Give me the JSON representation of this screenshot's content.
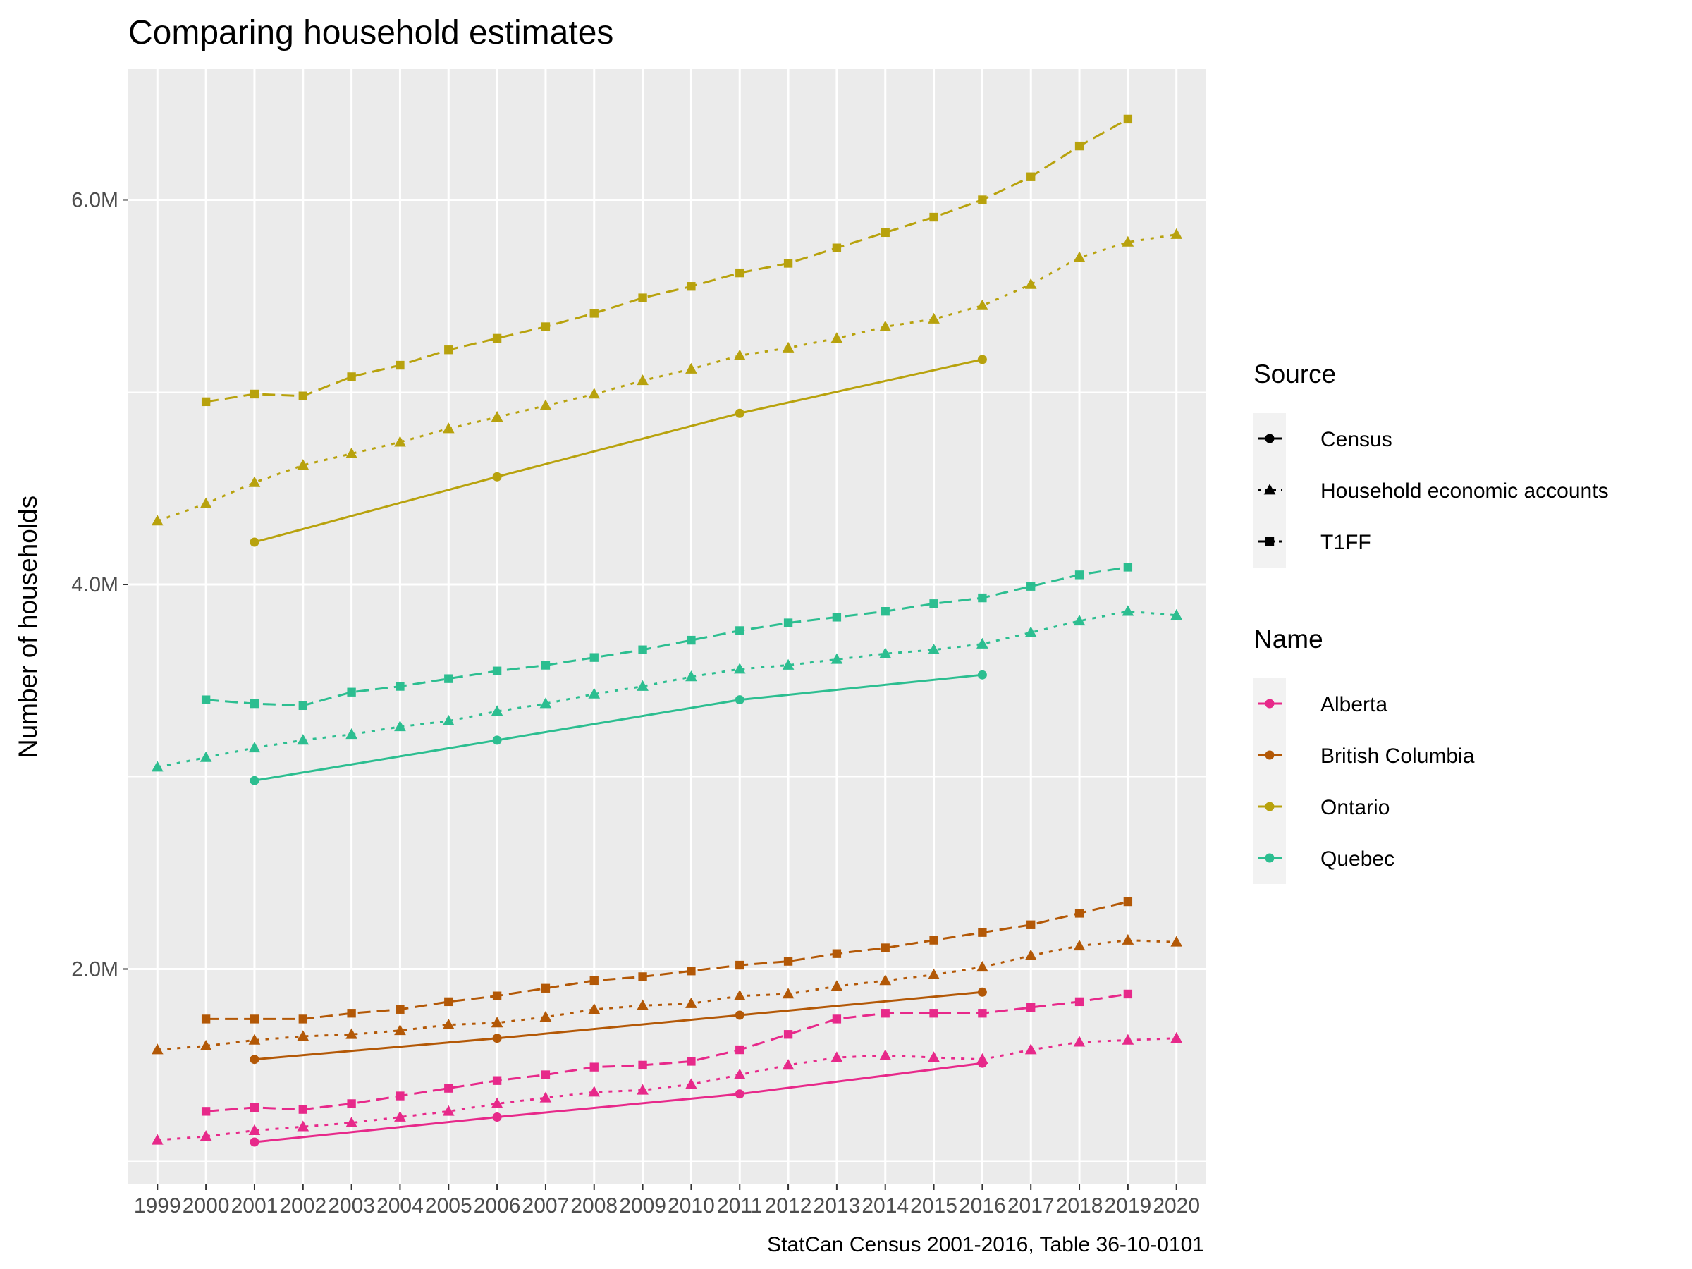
{
  "chart_data": {
    "type": "line",
    "title": "Comparing household estimates",
    "ylabel": "Number of households",
    "xlabel": "",
    "caption": "StatCan Census 2001-2016, Table 36-10-0101",
    "x_ticks": [
      "1999",
      "2000",
      "2001",
      "2002",
      "2003",
      "2004",
      "2005",
      "2006",
      "2007",
      "2008",
      "2009",
      "2010",
      "2011",
      "2012",
      "2013",
      "2014",
      "2015",
      "2016",
      "2017",
      "2018",
      "2019",
      "2020"
    ],
    "y_ticks": [
      {
        "value": 2000000,
        "label": "2.0M"
      },
      {
        "value": 4000000,
        "label": "4.0M"
      },
      {
        "value": 6000000,
        "label": "6.0M"
      }
    ],
    "xlim": [
      1998.4,
      2020.6
    ],
    "ylim": [
      880000,
      6680000
    ],
    "grid": true,
    "legend_placement": "right",
    "legends": [
      {
        "title": "Source",
        "items": [
          {
            "label": "Census",
            "dash": "solid",
            "shape": "circle"
          },
          {
            "label": "Household economic accounts",
            "dash": "dotted",
            "shape": "triangle"
          },
          {
            "label": "T1FF",
            "dash": "dashed",
            "shape": "square"
          }
        ]
      },
      {
        "title": "Name",
        "items": [
          {
            "label": "Alberta",
            "color": "#e7298a"
          },
          {
            "label": "British Columbia",
            "color": "#b35806"
          },
          {
            "label": "Ontario",
            "color": "#b8a20d"
          },
          {
            "label": "Quebec",
            "color": "#2cbe90"
          }
        ]
      }
    ],
    "series": [
      {
        "region": "Ontario",
        "source": "Census",
        "color": "#b8a20d",
        "dash": "solid",
        "shape": "circle",
        "x": [
          2001,
          2006,
          2011,
          2016
        ],
        "values": [
          4220000,
          4560000,
          4890000,
          5170000
        ]
      },
      {
        "region": "Ontario",
        "source": "Household economic accounts",
        "color": "#b8a20d",
        "dash": "dotted",
        "shape": "triangle",
        "x": [
          1999,
          2000,
          2001,
          2002,
          2003,
          2004,
          2005,
          2006,
          2007,
          2008,
          2009,
          2010,
          2011,
          2012,
          2013,
          2014,
          2015,
          2016,
          2017,
          2018,
          2019,
          2020
        ],
        "values": [
          4330000,
          4420000,
          4530000,
          4620000,
          4680000,
          4740000,
          4810000,
          4870000,
          4930000,
          4990000,
          5060000,
          5120000,
          5190000,
          5230000,
          5280000,
          5340000,
          5380000,
          5450000,
          5560000,
          5700000,
          5780000,
          5820000
        ]
      },
      {
        "region": "Ontario",
        "source": "T1FF",
        "color": "#b8a20d",
        "dash": "dashed",
        "shape": "square",
        "x": [
          2000,
          2001,
          2002,
          2003,
          2004,
          2005,
          2006,
          2007,
          2008,
          2009,
          2010,
          2011,
          2012,
          2013,
          2014,
          2015,
          2016,
          2017,
          2018,
          2019
        ],
        "values": [
          4950000,
          4990000,
          4980000,
          5080000,
          5140000,
          5220000,
          5280000,
          5340000,
          5410000,
          5490000,
          5550000,
          5620000,
          5670000,
          5750000,
          5830000,
          5910000,
          6000000,
          6120000,
          6280000,
          6420000
        ]
      },
      {
        "region": "Quebec",
        "source": "Census",
        "color": "#2cbe90",
        "dash": "solid",
        "shape": "circle",
        "x": [
          2001,
          2006,
          2011,
          2016
        ],
        "values": [
          2980000,
          3190000,
          3400000,
          3530000
        ]
      },
      {
        "region": "Quebec",
        "source": "Household economic accounts",
        "color": "#2cbe90",
        "dash": "dotted",
        "shape": "triangle",
        "x": [
          1999,
          2000,
          2001,
          2002,
          2003,
          2004,
          2005,
          2006,
          2007,
          2008,
          2009,
          2010,
          2011,
          2012,
          2013,
          2014,
          2015,
          2016,
          2017,
          2018,
          2019,
          2020
        ],
        "values": [
          3050000,
          3100000,
          3150000,
          3190000,
          3220000,
          3260000,
          3290000,
          3340000,
          3380000,
          3430000,
          3470000,
          3520000,
          3560000,
          3580000,
          3610000,
          3640000,
          3660000,
          3690000,
          3750000,
          3810000,
          3860000,
          3840000
        ]
      },
      {
        "region": "Quebec",
        "source": "T1FF",
        "color": "#2cbe90",
        "dash": "dashed",
        "shape": "square",
        "x": [
          2000,
          2001,
          2002,
          2003,
          2004,
          2005,
          2006,
          2007,
          2008,
          2009,
          2010,
          2011,
          2012,
          2013,
          2014,
          2015,
          2016,
          2017,
          2018,
          2019
        ],
        "values": [
          3400000,
          3380000,
          3370000,
          3440000,
          3470000,
          3510000,
          3550000,
          3580000,
          3620000,
          3660000,
          3710000,
          3760000,
          3800000,
          3830000,
          3860000,
          3900000,
          3930000,
          3990000,
          4050000,
          4090000
        ]
      },
      {
        "region": "British Columbia",
        "source": "Census",
        "color": "#b35806",
        "dash": "solid",
        "shape": "circle",
        "x": [
          2001,
          2006,
          2011,
          2016
        ],
        "values": [
          1530000,
          1640000,
          1760000,
          1880000
        ]
      },
      {
        "region": "British Columbia",
        "source": "Household economic accounts",
        "color": "#b35806",
        "dash": "dotted",
        "shape": "triangle",
        "x": [
          1999,
          2000,
          2001,
          2002,
          2003,
          2004,
          2005,
          2006,
          2007,
          2008,
          2009,
          2010,
          2011,
          2012,
          2013,
          2014,
          2015,
          2016,
          2017,
          2018,
          2019,
          2020
        ],
        "values": [
          1580000,
          1600000,
          1630000,
          1650000,
          1660000,
          1680000,
          1710000,
          1720000,
          1750000,
          1790000,
          1810000,
          1820000,
          1860000,
          1870000,
          1910000,
          1940000,
          1970000,
          2010000,
          2070000,
          2120000,
          2150000,
          2140000
        ]
      },
      {
        "region": "British Columbia",
        "source": "T1FF",
        "color": "#b35806",
        "dash": "dashed",
        "shape": "square",
        "x": [
          2000,
          2001,
          2002,
          2003,
          2004,
          2005,
          2006,
          2007,
          2008,
          2009,
          2010,
          2011,
          2012,
          2013,
          2014,
          2015,
          2016,
          2017,
          2018,
          2019
        ],
        "values": [
          1740000,
          1740000,
          1740000,
          1770000,
          1790000,
          1830000,
          1860000,
          1900000,
          1940000,
          1960000,
          1990000,
          2020000,
          2040000,
          2080000,
          2110000,
          2150000,
          2190000,
          2230000,
          2290000,
          2350000
        ]
      },
      {
        "region": "Alberta",
        "source": "Census",
        "color": "#e7298a",
        "dash": "solid",
        "shape": "circle",
        "x": [
          2001,
          2006,
          2011,
          2016
        ],
        "values": [
          1100000,
          1230000,
          1350000,
          1510000
        ]
      },
      {
        "region": "Alberta",
        "source": "Household economic accounts",
        "color": "#e7298a",
        "dash": "dotted",
        "shape": "triangle",
        "x": [
          1999,
          2000,
          2001,
          2002,
          2003,
          2004,
          2005,
          2006,
          2007,
          2008,
          2009,
          2010,
          2011,
          2012,
          2013,
          2014,
          2015,
          2016,
          2017,
          2018,
          2019,
          2020
        ],
        "values": [
          1110000,
          1130000,
          1160000,
          1180000,
          1200000,
          1230000,
          1260000,
          1300000,
          1330000,
          1360000,
          1370000,
          1400000,
          1450000,
          1500000,
          1540000,
          1550000,
          1540000,
          1530000,
          1580000,
          1620000,
          1630000,
          1640000
        ]
      },
      {
        "region": "Alberta",
        "source": "T1FF",
        "color": "#e7298a",
        "dash": "dashed",
        "shape": "square",
        "x": [
          2000,
          2001,
          2002,
          2003,
          2004,
          2005,
          2006,
          2007,
          2008,
          2009,
          2010,
          2011,
          2012,
          2013,
          2014,
          2015,
          2016,
          2017,
          2018,
          2019
        ],
        "values": [
          1260000,
          1280000,
          1270000,
          1300000,
          1340000,
          1380000,
          1420000,
          1450000,
          1490000,
          1500000,
          1520000,
          1580000,
          1660000,
          1740000,
          1770000,
          1770000,
          1770000,
          1800000,
          1830000,
          1870000
        ]
      }
    ]
  }
}
